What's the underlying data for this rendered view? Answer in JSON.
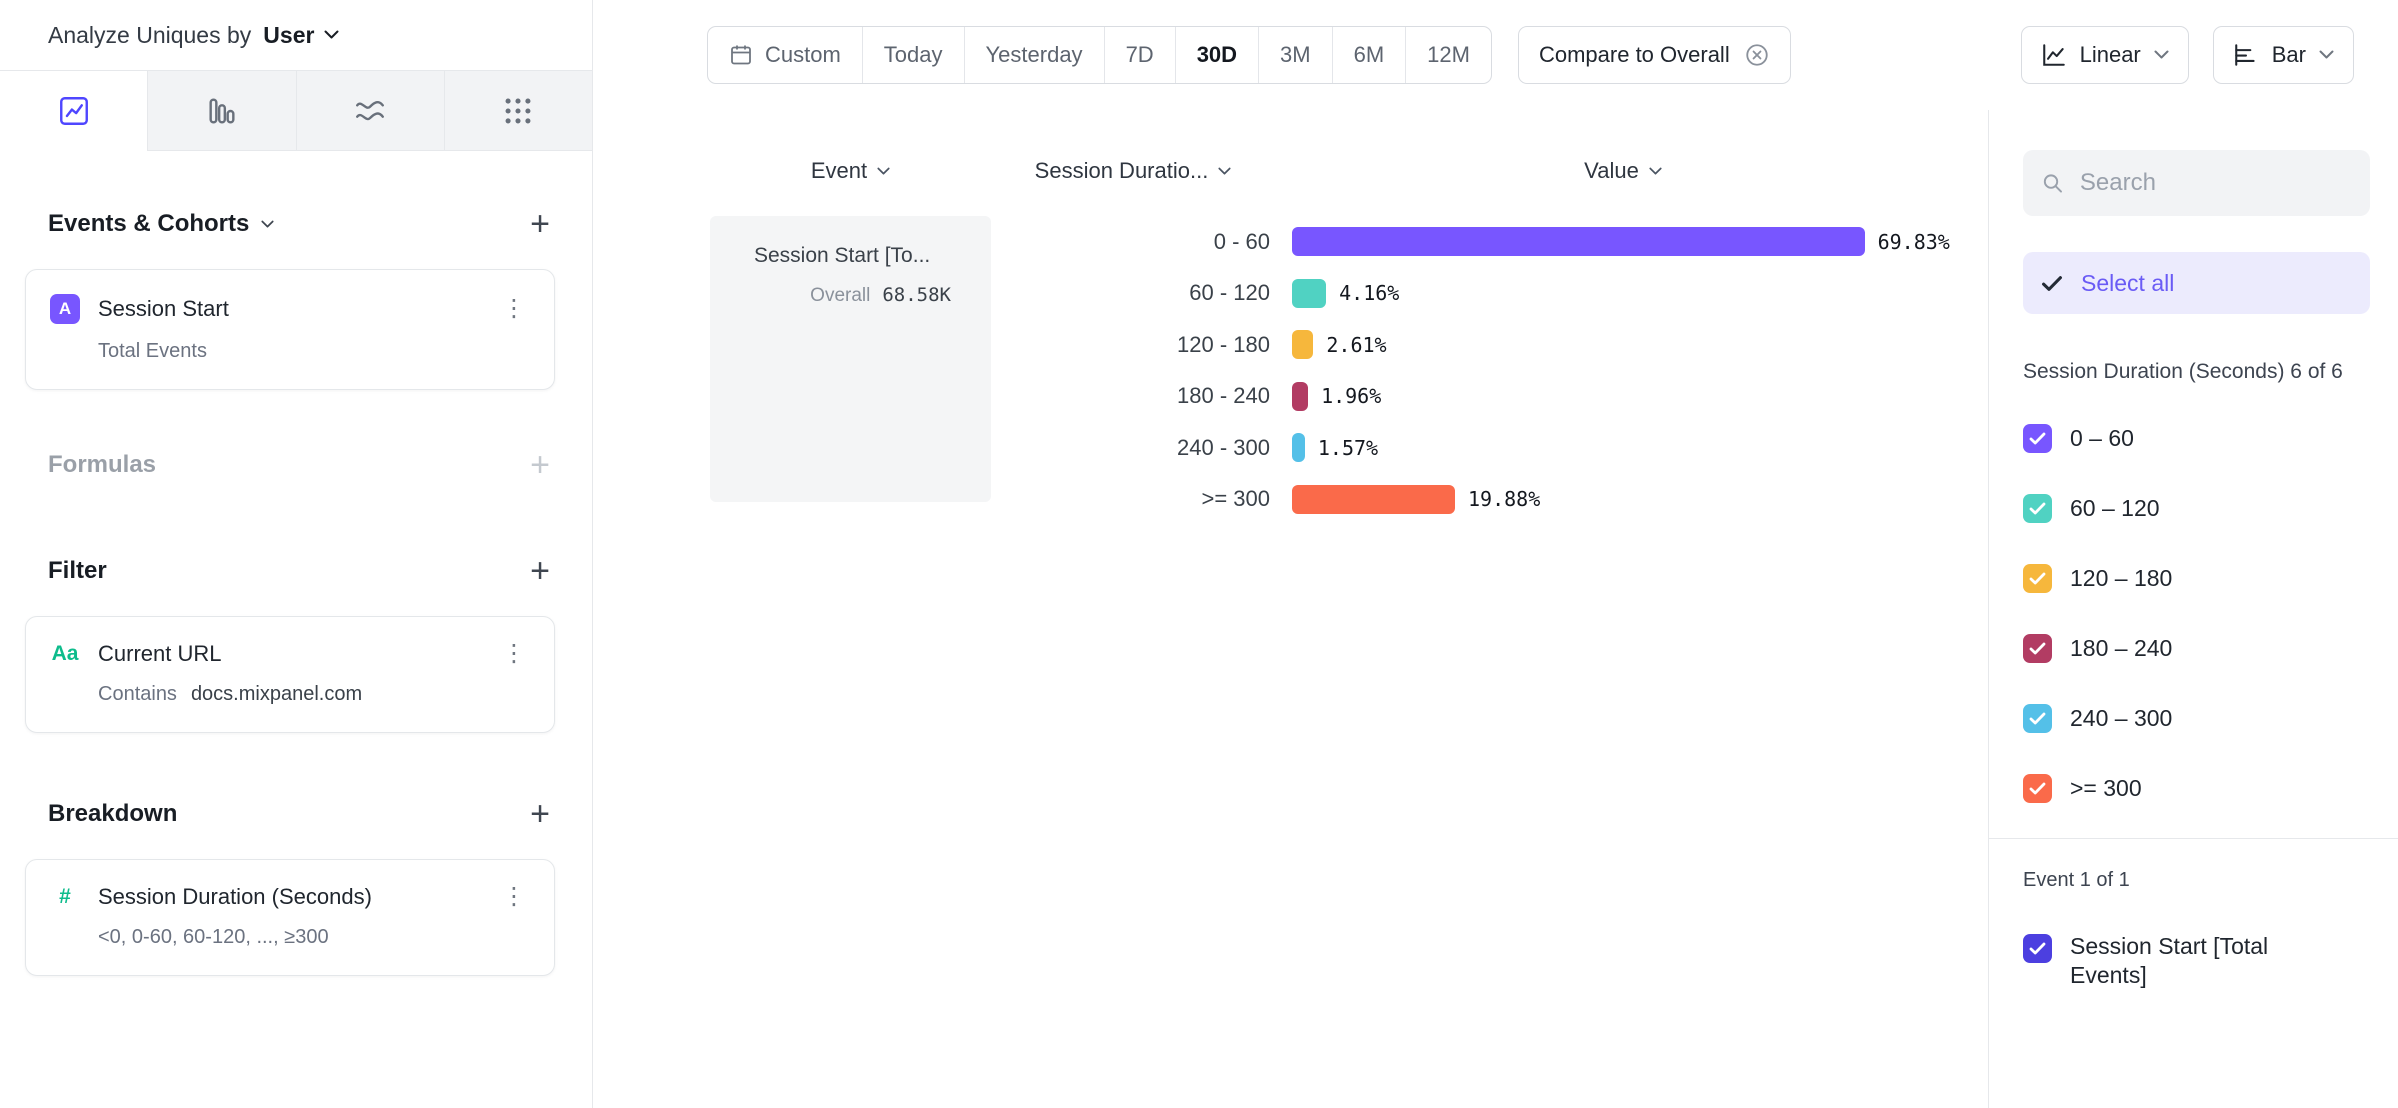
{
  "icons": {
    "plus": "+",
    "kebab": "⋮"
  },
  "sidebar_left": {
    "analyze_label": "Analyze Uniques by",
    "analyze_value": "User",
    "tabs": [
      "insights",
      "funnels",
      "retention",
      "flows"
    ],
    "events_section_title": "Events & Cohorts",
    "event_card": {
      "badge": "A",
      "title": "Session Start",
      "subtitle": "Total Events"
    },
    "formulas_title": "Formulas",
    "filter_title": "Filter",
    "filter_card": {
      "badge": "Aa",
      "title": "Current URL",
      "operator": "Contains",
      "value": "docs.mixpanel.com"
    },
    "breakdown_title": "Breakdown",
    "breakdown_card": {
      "badge": "#",
      "title": "Session Duration (Seconds)",
      "subtitle": "<0, 0-60, 60-120, ..., ≥300"
    }
  },
  "toolbar": {
    "date_ranges": [
      "Custom",
      "Today",
      "Yesterday",
      "7D",
      "30D",
      "3M",
      "6M",
      "12M"
    ],
    "selected_range": "30D",
    "compare_label": "Compare to Overall",
    "chart_type_primary": "Linear",
    "chart_type_secondary": "Bar"
  },
  "table_headers": {
    "event": "Event",
    "breakdown": "Session Duratio...",
    "value": "Value"
  },
  "group_cell": {
    "title": "Session Start [To...",
    "overall_label": "Overall",
    "overall_value": "68.58K"
  },
  "chart_data": {
    "type": "bar",
    "orientation": "horizontal",
    "series_name": "Session Start [Total Events]",
    "categories": [
      "0 - 60",
      "60 - 120",
      "120 - 180",
      "180 - 240",
      "240 - 300",
      ">= 300"
    ],
    "values": [
      69.83,
      4.16,
      2.61,
      1.96,
      1.57,
      19.88
    ],
    "labels": [
      "69.83%",
      "4.16%",
      "2.61%",
      "1.96%",
      "1.57%",
      "19.88%"
    ],
    "colors": [
      "#7856ff",
      "#50d2c2",
      "#f6b73c",
      "#b23c63",
      "#54c0e8",
      "#fa6a4a"
    ],
    "unit": "%",
    "value_range": [
      0,
      100
    ],
    "grid": false,
    "legend_position": "right-checklist"
  },
  "sidebar_right": {
    "search_placeholder": "Search",
    "select_all_label": "Select all",
    "group_label": "Session Duration (Seconds) 6 of 6",
    "items": [
      {
        "label": "0 – 60",
        "color": "#7856ff"
      },
      {
        "label": "60 – 120",
        "color": "#50d2c2"
      },
      {
        "label": "120 – 180",
        "color": "#f6b73c"
      },
      {
        "label": "180 – 240",
        "color": "#b23c63"
      },
      {
        "label": "240 – 300",
        "color": "#54c0e8"
      },
      {
        "label": ">= 300",
        "color": "#fa6a4a"
      }
    ],
    "event_group_label": "Event 1 of 1",
    "event_item": {
      "label": "Session Start [Total Events]",
      "color": "#4c3fe0"
    }
  }
}
